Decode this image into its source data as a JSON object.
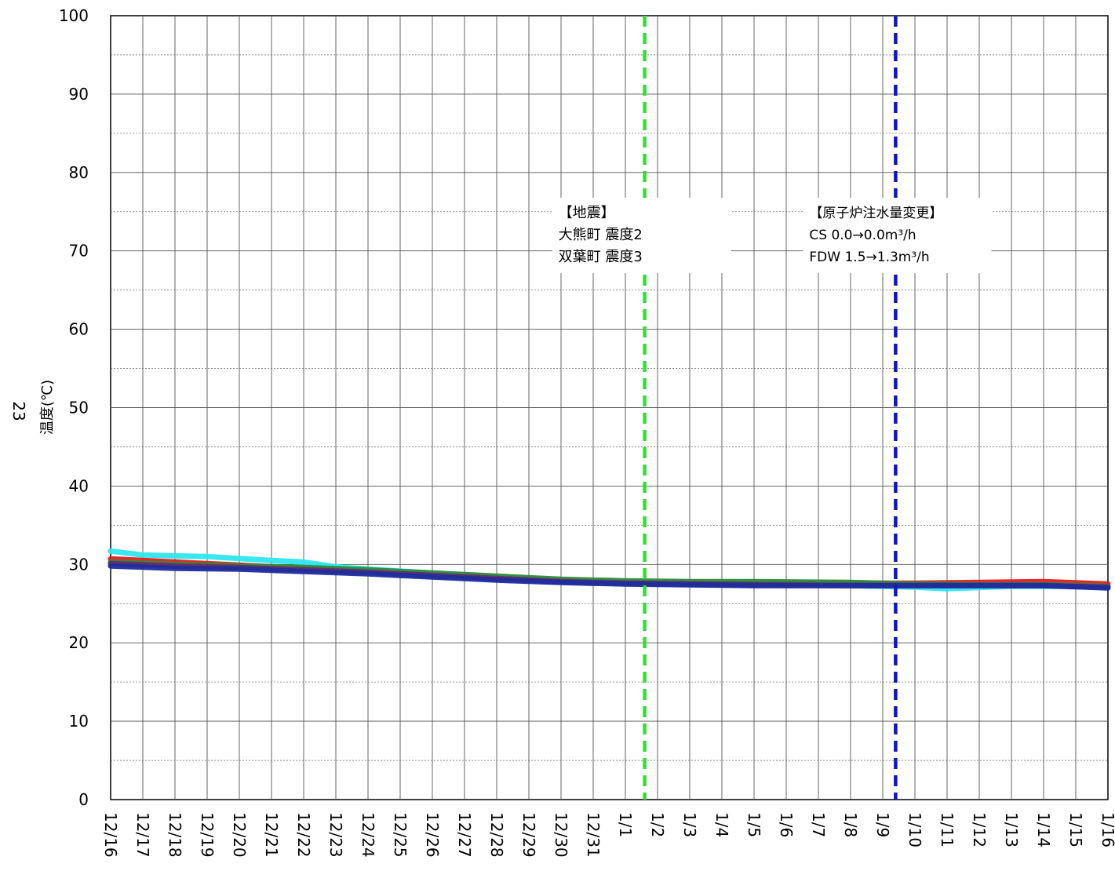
{
  "chart_data": {
    "type": "line",
    "ylabel": "温度(℃)",
    "ylabel_prefix": "23",
    "ylim": [
      0,
      100
    ],
    "yticks": [
      0,
      10,
      20,
      30,
      40,
      50,
      60,
      70,
      80,
      90,
      100
    ],
    "xlim": [
      "12/16",
      "1/16"
    ],
    "categories": [
      "12/16",
      "12/17",
      "12/18",
      "12/19",
      "12/20",
      "12/21",
      "12/22",
      "12/23",
      "12/24",
      "12/25",
      "12/26",
      "12/27",
      "12/28",
      "12/29",
      "12/30",
      "12/31",
      "1/1",
      "1/2",
      "1/3",
      "1/4",
      "1/5",
      "1/6",
      "1/7",
      "1/8",
      "1/9",
      "1/10",
      "1/11",
      "1/12",
      "1/13",
      "1/14",
      "1/15",
      "1/16"
    ],
    "grid": true,
    "series": [
      {
        "color": "#2ee6f0",
        "x": [
          "12/16",
          "12/17",
          "12/19",
          "12/21",
          "12/22",
          "12/23",
          "12/24",
          "12/26",
          "12/28",
          "12/30",
          "1/1",
          "1/3",
          "1/5",
          "1/8",
          "1/10",
          "1/11",
          "1/13",
          "1/15",
          "1/16"
        ],
        "values": [
          31.7,
          31.2,
          31.0,
          30.5,
          30.3,
          29.7,
          29.4,
          28.9,
          28.4,
          27.9,
          27.6,
          27.5,
          27.4,
          27.3,
          27.1,
          26.9,
          27.2,
          27.2,
          27.1
        ]
      },
      {
        "color": "#e0201b",
        "x": [
          "12/16",
          "12/18",
          "12/20",
          "12/22",
          "12/24",
          "12/26",
          "12/28",
          "12/30",
          "1/1",
          "1/3",
          "1/5",
          "1/8",
          "1/10",
          "1/12",
          "1/14",
          "1/16"
        ],
        "values": [
          30.7,
          30.3,
          29.9,
          29.5,
          29.0,
          28.6,
          28.2,
          27.9,
          27.7,
          27.6,
          27.6,
          27.6,
          27.6,
          27.7,
          27.8,
          27.5
        ]
      },
      {
        "color": "#2e8b3a",
        "x": [
          "12/16",
          "12/18",
          "12/20",
          "12/22",
          "12/24",
          "12/26",
          "12/28",
          "12/30",
          "1/1",
          "1/3",
          "1/5",
          "1/8",
          "1/10",
          "1/12",
          "1/14",
          "1/16"
        ],
        "values": [
          30.3,
          30.0,
          29.8,
          29.6,
          29.3,
          28.9,
          28.5,
          28.1,
          27.9,
          27.8,
          27.8,
          27.7,
          27.5,
          27.4,
          27.4,
          27.2
        ]
      },
      {
        "color": "#6a2a6a",
        "x": [
          "12/16",
          "12/18",
          "12/20",
          "12/22",
          "12/24",
          "12/26",
          "12/28",
          "12/30",
          "1/1",
          "1/3",
          "1/5",
          "1/8",
          "1/10",
          "1/12",
          "1/14",
          "1/16"
        ],
        "values": [
          30.1,
          29.8,
          29.6,
          29.3,
          29.0,
          28.6,
          28.2,
          27.8,
          27.6,
          27.5,
          27.4,
          27.3,
          27.3,
          27.3,
          27.3,
          27.1
        ]
      },
      {
        "color": "#1f2d9e",
        "x": [
          "12/16",
          "12/18",
          "12/20",
          "12/22",
          "12/24",
          "12/26",
          "12/28",
          "12/30",
          "1/1",
          "1/3",
          "1/5",
          "1/8",
          "1/10",
          "1/12",
          "1/14",
          "1/16"
        ],
        "values": [
          29.8,
          29.5,
          29.4,
          29.1,
          28.8,
          28.4,
          28.0,
          27.7,
          27.5,
          27.4,
          27.3,
          27.3,
          27.3,
          27.3,
          27.3,
          27.0
        ]
      }
    ],
    "events": [
      {
        "x": "1/1",
        "x_offset_days": 0.6,
        "color": "#33dd33",
        "lines": [
          "【地震】",
          "大熊町  震度2",
          "双葉町  震度3"
        ]
      },
      {
        "x": "1/9",
        "x_offset_days": 0.4,
        "color": "#1111cc",
        "lines": [
          "【原子炉注水量変更】",
          "CS     0.0→0.0m³/h",
          "FDW  1.5→1.3m³/h"
        ]
      }
    ]
  }
}
